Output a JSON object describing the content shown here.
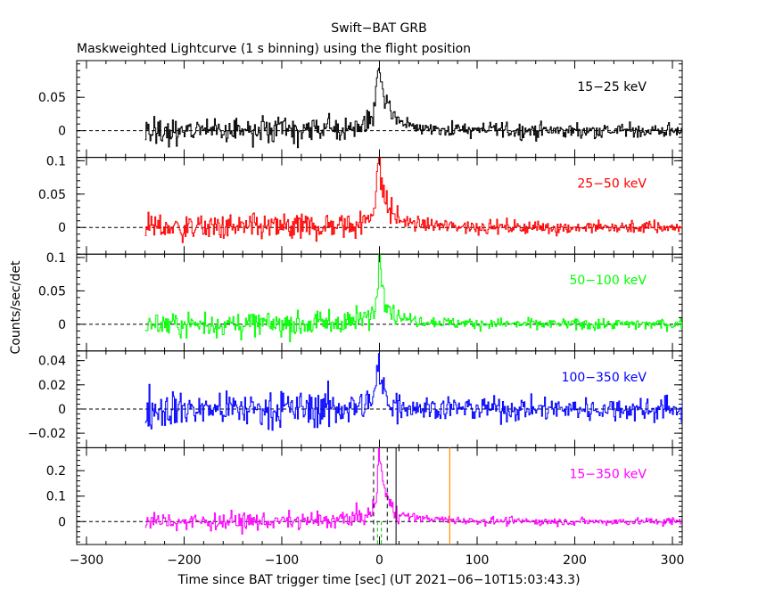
{
  "chart_data": {
    "type": "line",
    "title": "Swift−BAT GRB",
    "subtitle": "Maskweighted Lightcurve (1 s binning) using the flight position",
    "xlabel": "Time since BAT trigger time [sec] (UT 2021−06−10T15:03:43.3)",
    "ylabel": "Counts/sec/det",
    "xlim": [
      -310,
      310
    ],
    "xticks": [
      -300,
      -200,
      -100,
      0,
      100,
      200,
      300
    ],
    "xtick_labels": [
      "−300",
      "−200",
      "−100",
      "0",
      "100",
      "200",
      "300"
    ],
    "data_range": [
      -240,
      310
    ],
    "binning_s": 1,
    "panels": [
      {
        "band": "15−25 keV",
        "color": "#000000",
        "ylim": [
          -0.04,
          0.105
        ],
        "yticks": [
          0,
          0.05
        ],
        "ytick_labels": [
          "0",
          "0.05"
        ],
        "pre_noise": 0.013,
        "post_noise": 0.008,
        "peak": 0.09,
        "peak_time": -2,
        "decay_s": 8,
        "rise_s": 3
      },
      {
        "band": "25−50 keV",
        "color": "#ff0000",
        "ylim": [
          -0.04,
          0.105
        ],
        "yticks": [
          0,
          0.05,
          0.1
        ],
        "ytick_labels": [
          "0",
          "0.05",
          "0.1"
        ],
        "pre_noise": 0.014,
        "post_noise": 0.007,
        "peak": 0.092,
        "peak_time": -2,
        "decay_s": 7,
        "rise_s": 3
      },
      {
        "band": "50−100 keV",
        "color": "#00ff00",
        "ylim": [
          -0.04,
          0.105
        ],
        "yticks": [
          0,
          0.05,
          0.1
        ],
        "ytick_labels": [
          "0",
          "0.05",
          "0.1"
        ],
        "pre_noise": 0.013,
        "post_noise": 0.006,
        "peak": 0.097,
        "peak_time": -1,
        "decay_s": 6,
        "rise_s": 2
      },
      {
        "band": "100−350 keV",
        "color": "#0000ff",
        "ylim": [
          -0.032,
          0.048
        ],
        "yticks": [
          -0.02,
          0,
          0.02,
          0.04
        ],
        "ytick_labels": [
          "−0.02",
          "0",
          "0.02",
          "0.04"
        ],
        "pre_noise": 0.011,
        "post_noise": 0.007,
        "peak": 0.03,
        "peak_time": -2,
        "decay_s": 6,
        "rise_s": 3
      },
      {
        "band": "15−350 keV",
        "color": "#ff00ff",
        "ylim": [
          -0.09,
          0.29
        ],
        "yticks": [
          0,
          0.1,
          0.2
        ],
        "ytick_labels": [
          "0",
          "0.1",
          "0.2"
        ],
        "pre_noise": 0.024,
        "post_noise": 0.011,
        "peak": 0.26,
        "peak_time": -1,
        "decay_s": 6,
        "rise_s": 2,
        "markers": {
          "black_dashed": [
            -6,
            8
          ],
          "black_solid": [
            17
          ],
          "orange_solid": [
            72
          ],
          "green_dashed": [
            -2,
            2
          ]
        }
      }
    ]
  }
}
